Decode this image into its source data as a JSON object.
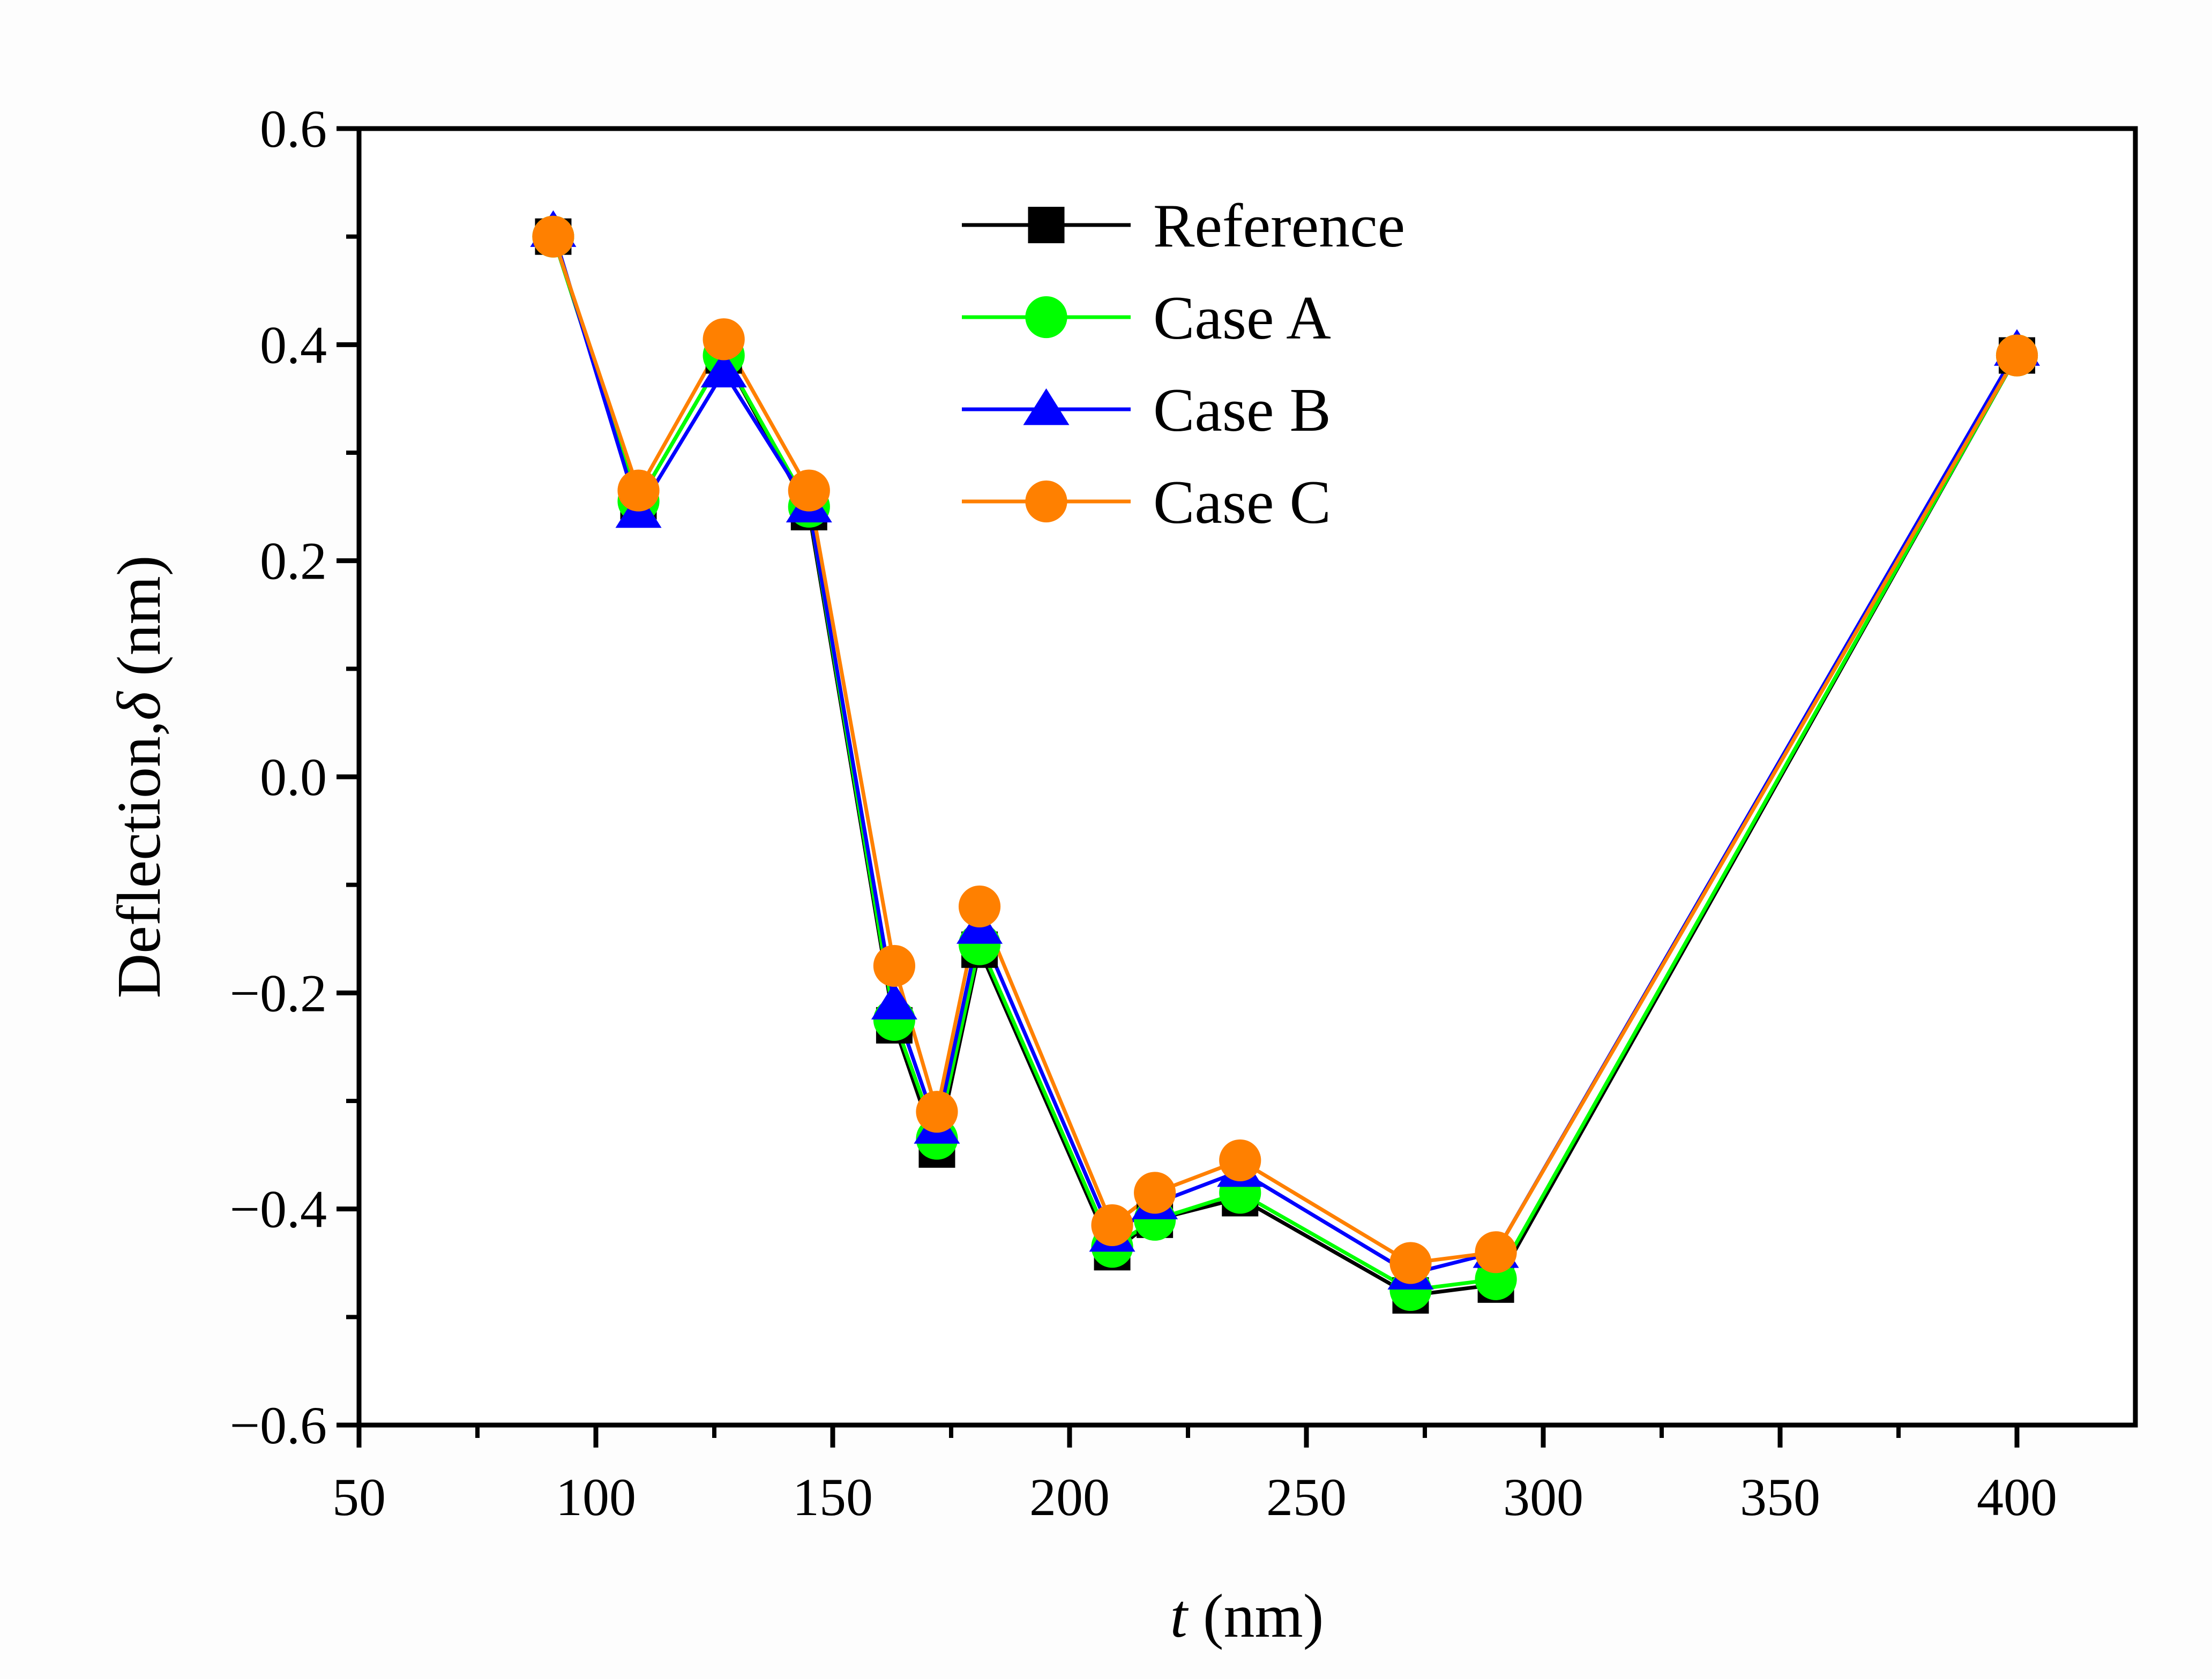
{
  "chart_data": {
    "type": "line",
    "title": "",
    "xlabel": {
      "var": "t",
      "unit": " (nm)"
    },
    "ylabel": {
      "prefix": "Deflection,",
      "symbol": "δ",
      "unit": " (nm)"
    },
    "xlim": [
      50,
      425
    ],
    "ylim": [
      -0.6,
      0.6
    ],
    "xticks": [
      50,
      100,
      150,
      200,
      250,
      300,
      350,
      400
    ],
    "xtick_labels": [
      "50",
      "100",
      "150",
      "200",
      "250",
      "300",
      "350",
      "400"
    ],
    "yticks": [
      -0.6,
      -0.4,
      -0.2,
      0.0,
      0.2,
      0.4,
      0.6
    ],
    "ytick_labels": [
      "−0.6",
      "−0.4",
      "−0.2",
      "0.0",
      "0.2",
      "0.4",
      "0.6"
    ],
    "legend_position": "top-center",
    "x": [
      91,
      109,
      127,
      145,
      163,
      172,
      181,
      209,
      218,
      236,
      272,
      290,
      400
    ],
    "series": [
      {
        "name": "Reference",
        "marker": "square",
        "color": "#000000",
        "values": [
          0.5,
          0.255,
          0.39,
          0.245,
          -0.23,
          -0.345,
          -0.16,
          -0.44,
          -0.41,
          -0.39,
          -0.48,
          -0.47,
          0.39
        ]
      },
      {
        "name": "Case A",
        "marker": "circle",
        "color": "#00ff00",
        "values": [
          0.5,
          0.255,
          0.39,
          0.25,
          -0.225,
          -0.335,
          -0.155,
          -0.435,
          -0.41,
          -0.385,
          -0.475,
          -0.465,
          0.39
        ]
      },
      {
        "name": "Case B",
        "marker": "triangle",
        "color": "#0000ff",
        "values": [
          0.505,
          0.245,
          0.375,
          0.25,
          -0.21,
          -0.325,
          -0.14,
          -0.425,
          -0.395,
          -0.365,
          -0.46,
          -0.44,
          0.395
        ]
      },
      {
        "name": "Case C",
        "marker": "circle",
        "color": "#ff8000",
        "values": [
          0.5,
          0.265,
          0.405,
          0.265,
          -0.175,
          -0.31,
          -0.12,
          -0.415,
          -0.385,
          -0.355,
          -0.45,
          -0.44,
          0.39
        ]
      }
    ]
  }
}
